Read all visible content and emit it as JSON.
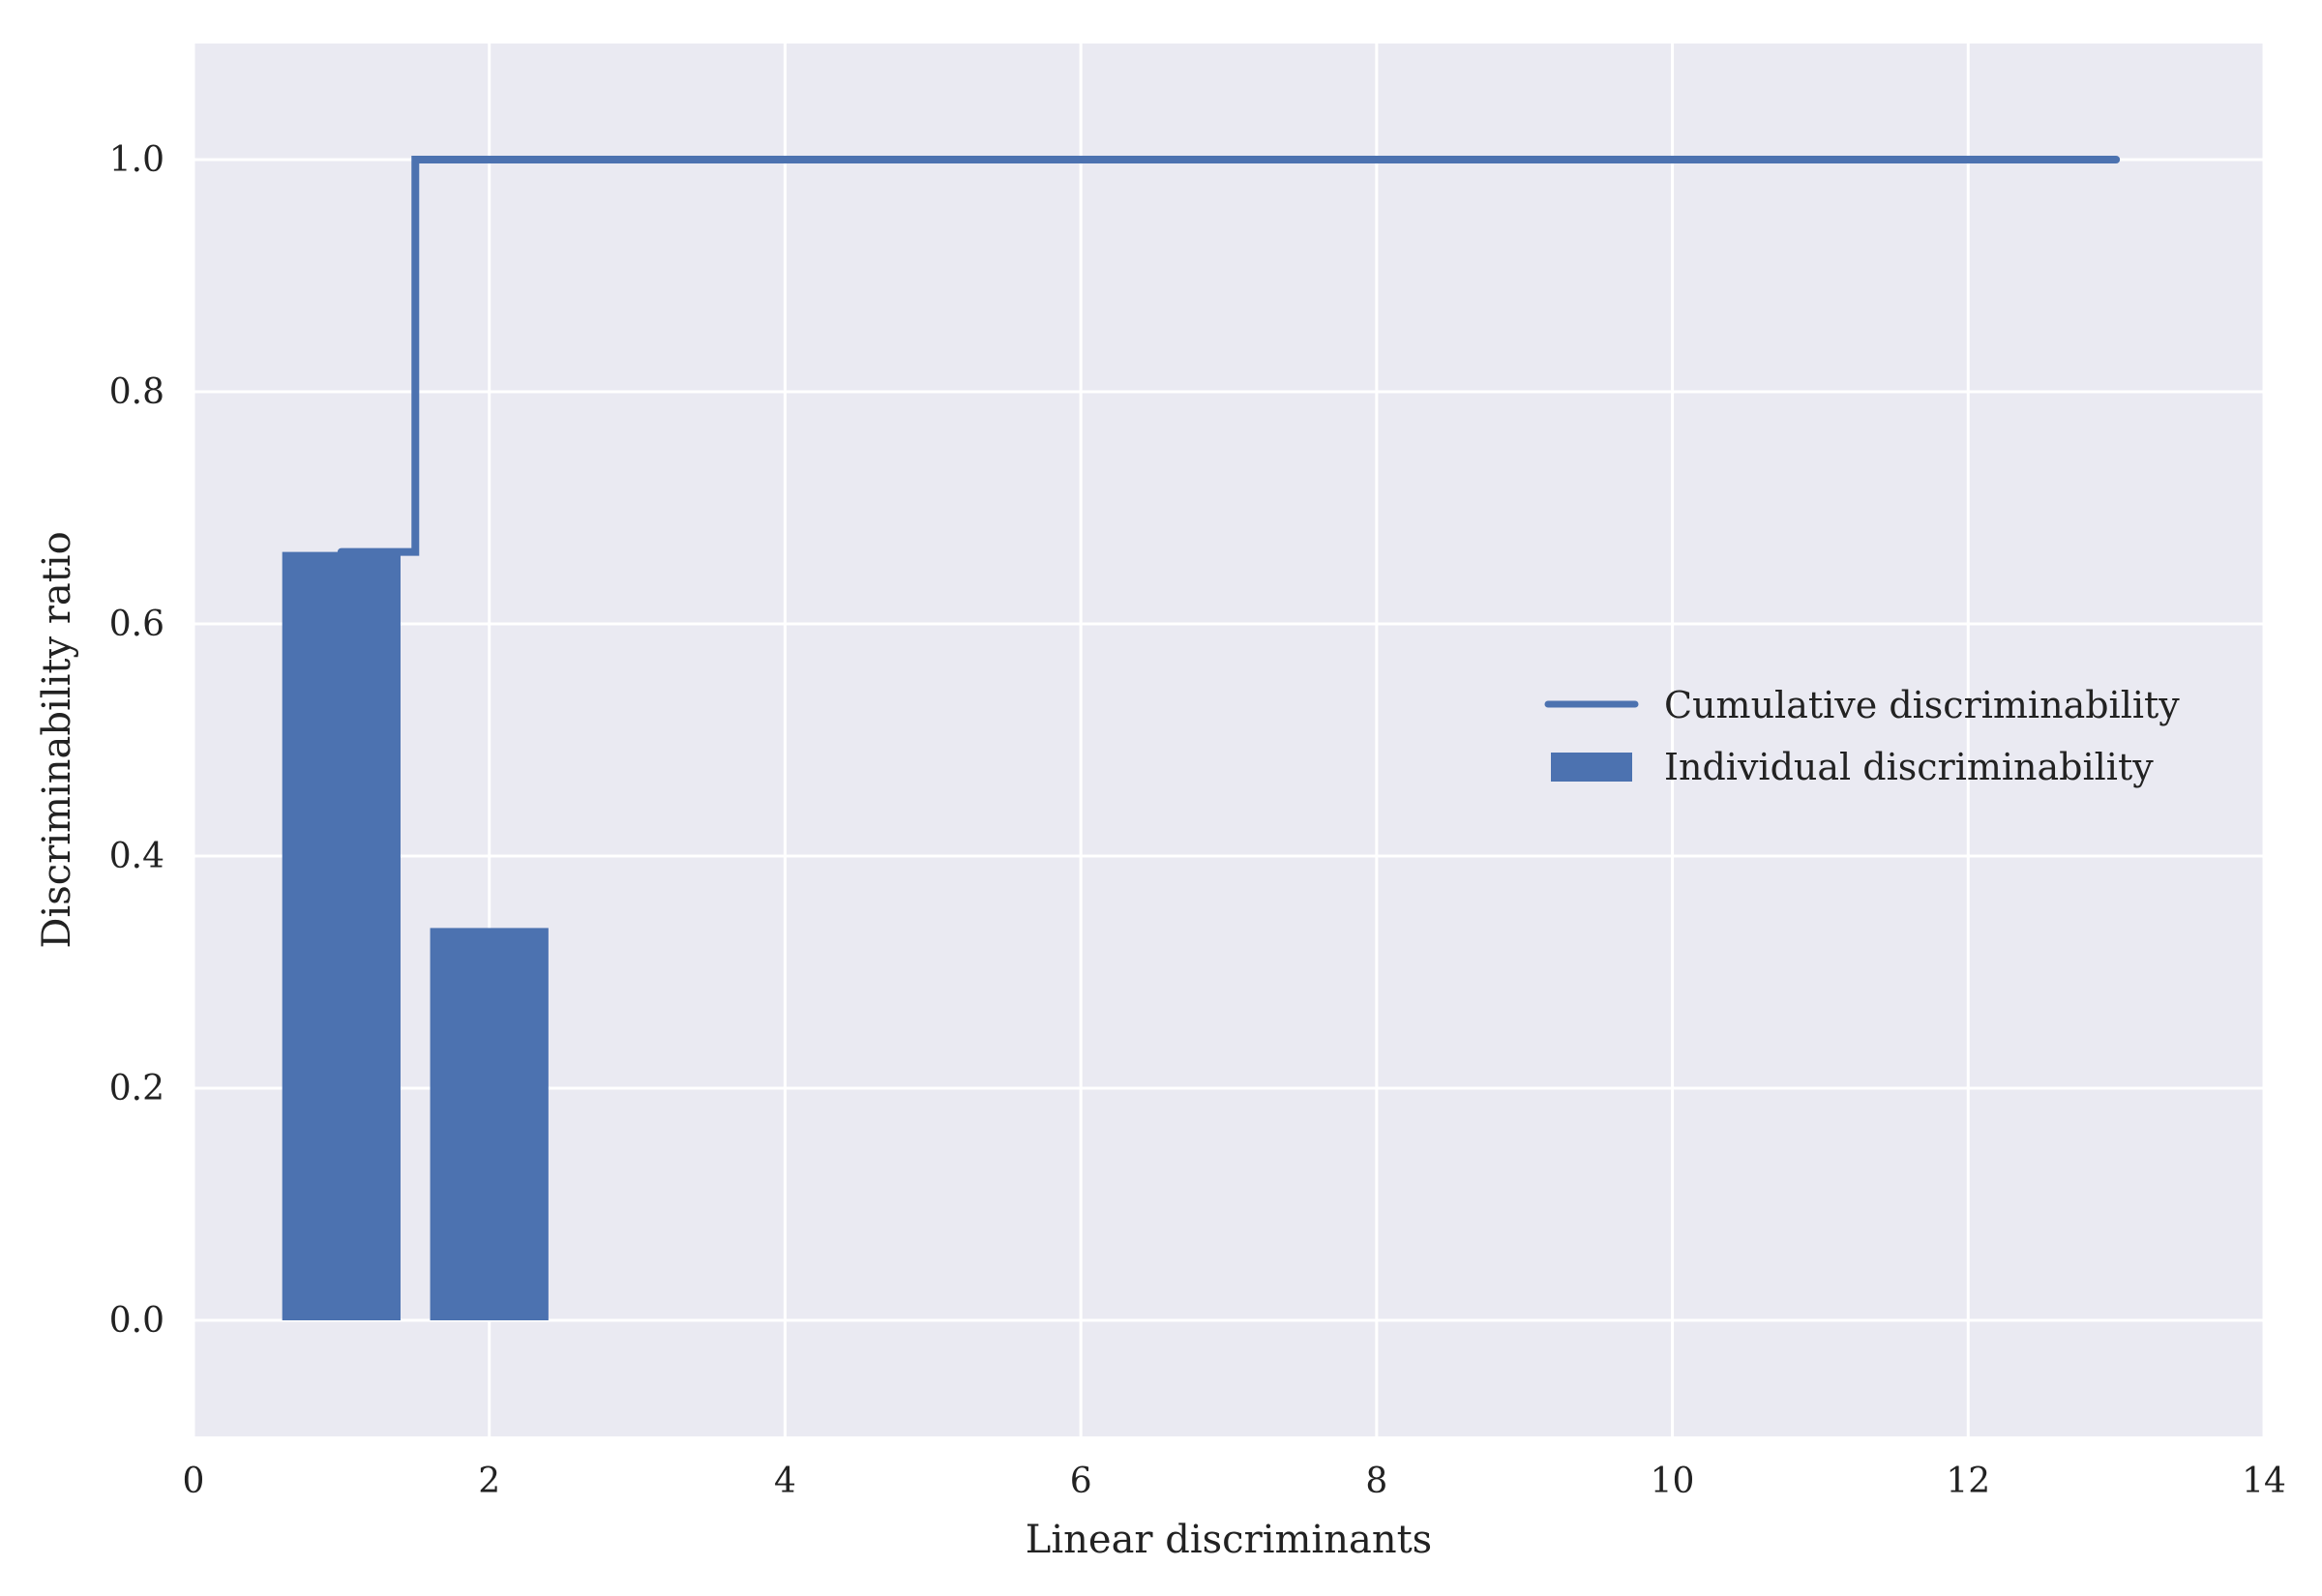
{
  "chart_data": {
    "type": "bar",
    "xlabel": "Linear discriminants",
    "ylabel": "Discriminability ratio",
    "xlim": [
      0,
      14
    ],
    "ylim": [
      -0.1,
      1.1
    ],
    "xticks": [
      0,
      2,
      4,
      6,
      8,
      10,
      12,
      14
    ],
    "yticks": [
      0.0,
      0.2,
      0.4,
      0.6,
      0.8,
      1.0
    ],
    "xtick_labels": [
      "0",
      "2",
      "4",
      "6",
      "8",
      "10",
      "12",
      "14"
    ],
    "ytick_labels": [
      "0.0",
      "0.2",
      "0.4",
      "0.6",
      "0.8",
      "1.0"
    ],
    "grid": true,
    "legend_position": "center-right",
    "bar_width": 0.8,
    "bars": {
      "name": "Individual discriminability",
      "x": [
        1,
        2
      ],
      "values": [
        0.662,
        0.338
      ]
    },
    "step": {
      "name": "Cumulative discriminability",
      "where": "mid",
      "x": [
        1,
        2,
        3,
        4,
        5,
        6,
        7,
        8,
        9,
        10,
        11,
        12,
        13
      ],
      "values": [
        0.662,
        1.0,
        1.0,
        1.0,
        1.0,
        1.0,
        1.0,
        1.0,
        1.0,
        1.0,
        1.0,
        1.0,
        1.0
      ]
    },
    "colors": {
      "series": "#4c72b0",
      "plot_background": "#eaeaf2",
      "grid": "#ffffff"
    }
  }
}
